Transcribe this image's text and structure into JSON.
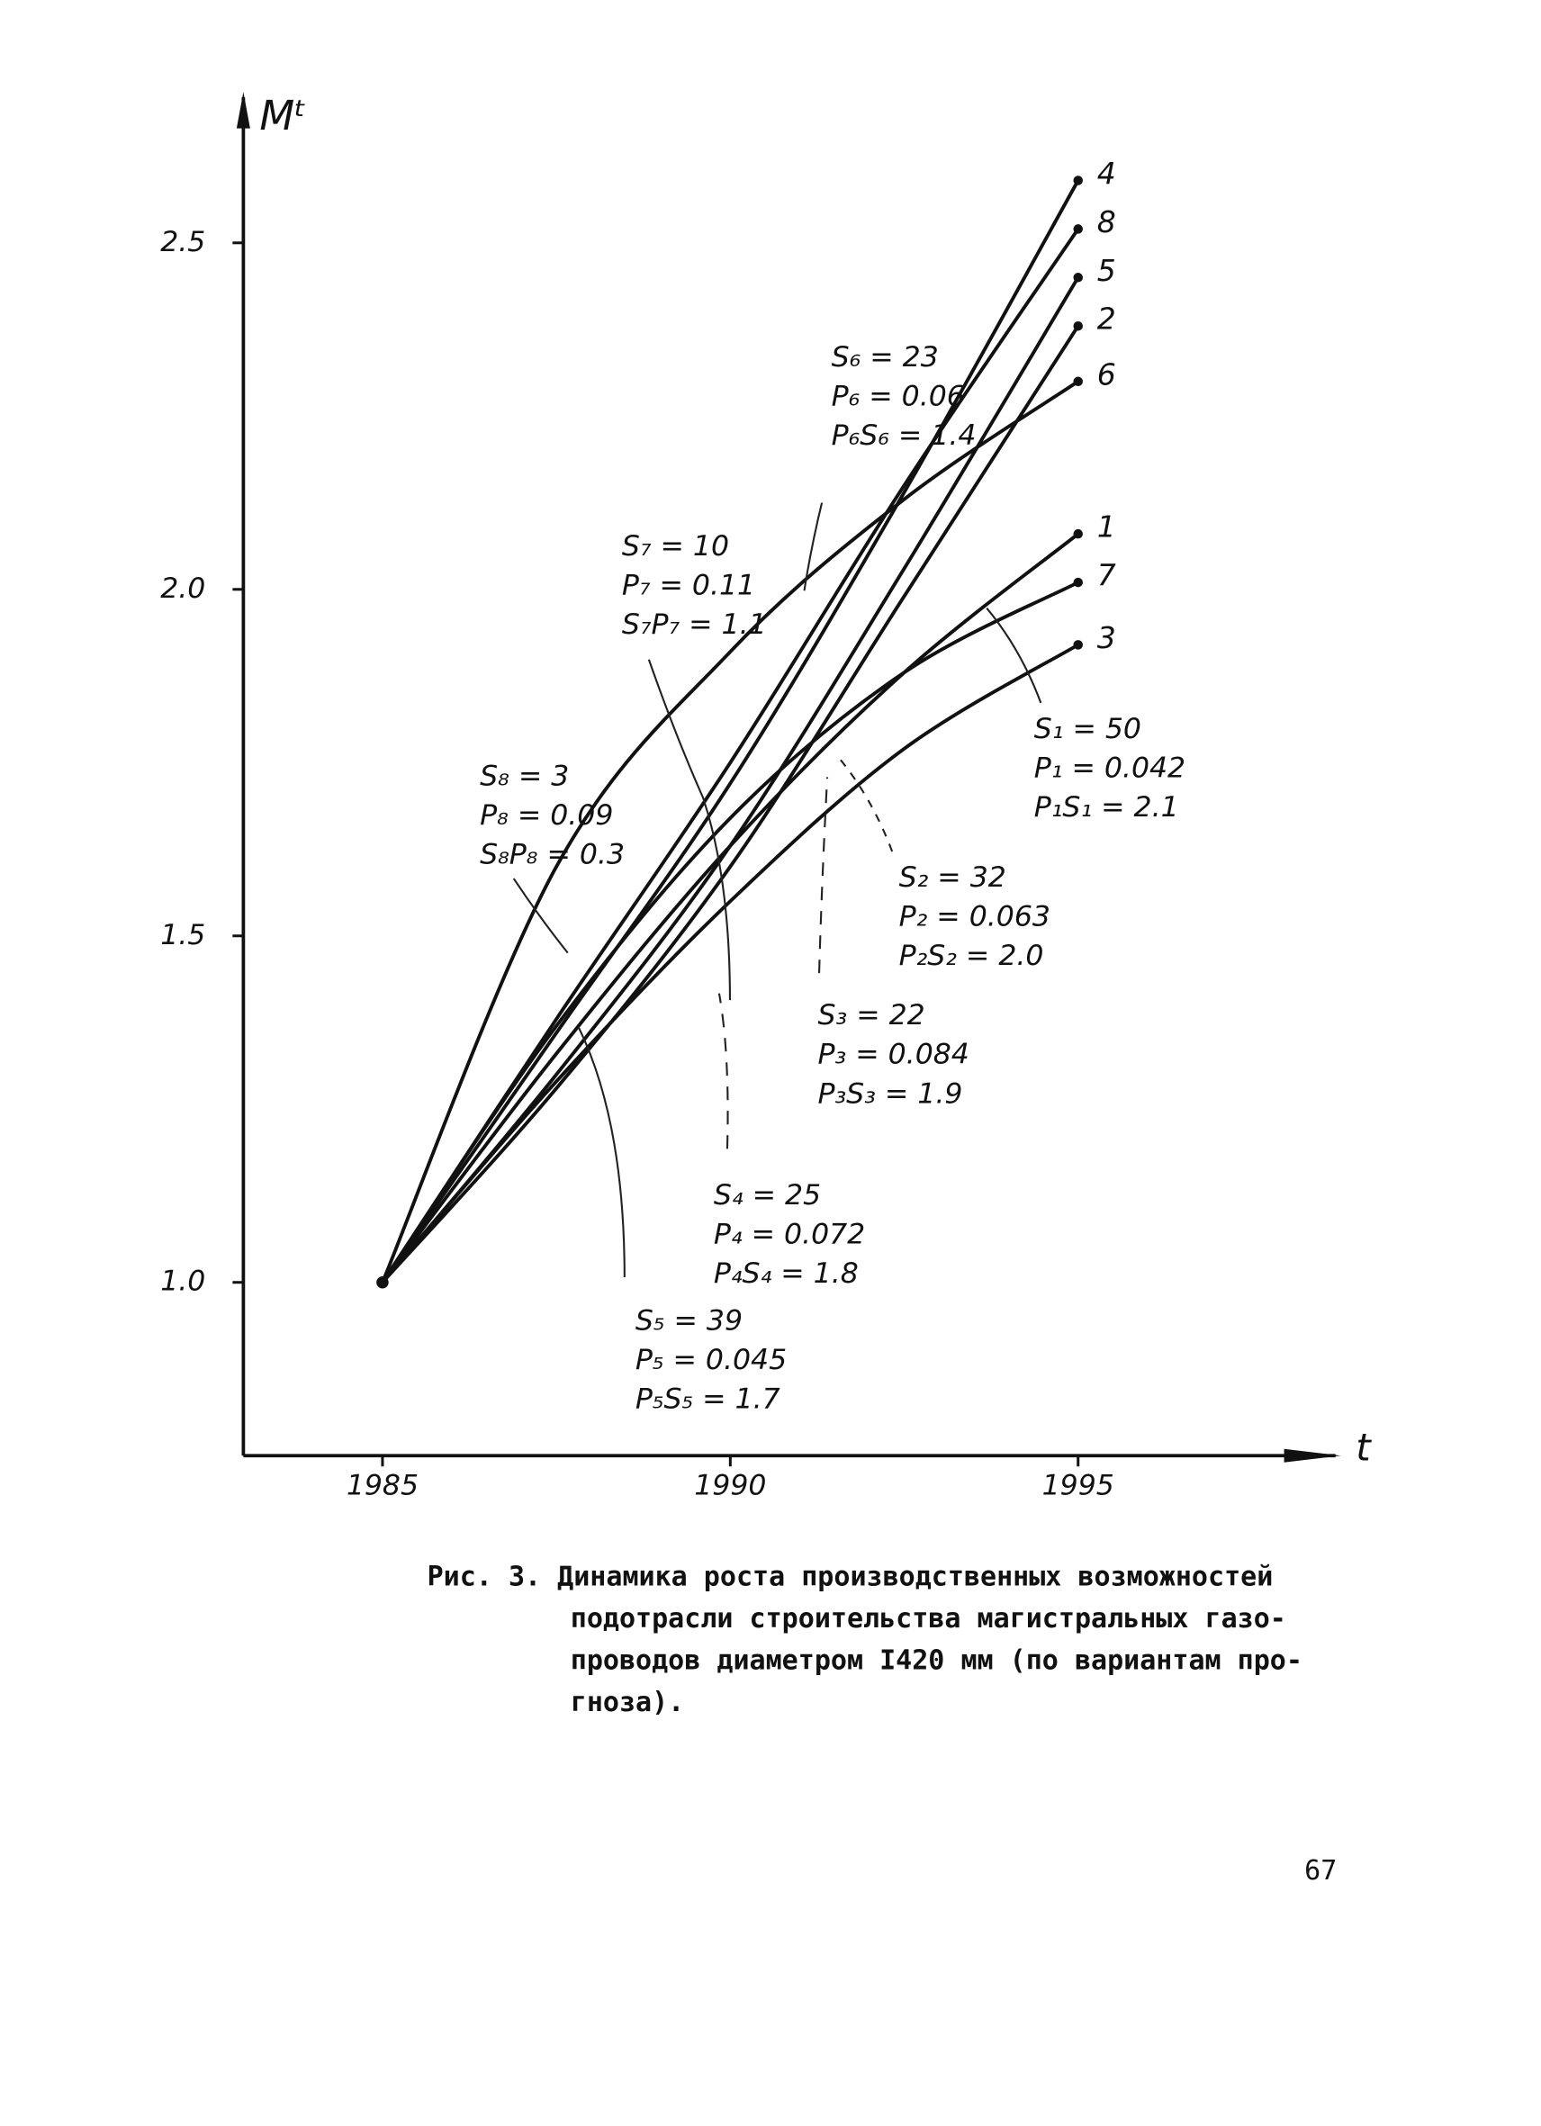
{
  "chart_data": {
    "type": "line",
    "y_label": "Mᵗ",
    "x_label": "t",
    "x": [
      1985,
      1987.5,
      1990,
      1992.5,
      1995
    ],
    "series": [
      {
        "name": "1",
        "color": "#111111",
        "values": [
          1.0,
          1.33,
          1.63,
          1.88,
          2.08
        ]
      },
      {
        "name": "2",
        "color": "#111111",
        "values": [
          1.0,
          1.28,
          1.6,
          1.99,
          2.38
        ]
      },
      {
        "name": "3",
        "color": "#111111",
        "values": [
          1.0,
          1.29,
          1.55,
          1.77,
          1.92
        ]
      },
      {
        "name": "4",
        "color": "#111111",
        "values": [
          1.0,
          1.36,
          1.72,
          2.14,
          2.59
        ]
      },
      {
        "name": "5",
        "color": "#111111",
        "values": [
          1.0,
          1.3,
          1.63,
          2.03,
          2.45
        ]
      },
      {
        "name": "6",
        "color": "#111111",
        "values": [
          1.0,
          1.6,
          1.91,
          2.13,
          2.3
        ]
      },
      {
        "name": "7",
        "color": "#111111",
        "values": [
          1.0,
          1.37,
          1.67,
          1.88,
          2.01
        ]
      },
      {
        "name": "8",
        "color": "#111111",
        "values": [
          1.0,
          1.38,
          1.75,
          2.15,
          2.52
        ]
      }
    ],
    "xlim": [
      1983,
      1998.7
    ],
    "xticks": [
      1985,
      1990,
      1995
    ],
    "ylim": [
      0.75,
      2.71
    ],
    "yticks": [
      {
        "value": 1,
        "label": "1.0"
      },
      1.5,
      {
        "value": 2,
        "label": "2.0"
      },
      2.5
    ],
    "annotations": [
      [
        "S₁ = 50",
        "P₁ = 0.042",
        "P₁S₁ = 2.1"
      ],
      [
        "S₂ = 32",
        "P₂ = 0.063",
        "P₂S₂ = 2.0"
      ],
      [
        "S₃ = 22",
        "P₃ = 0.084",
        "P₃S₃ = 1.9"
      ],
      [
        "S₄ = 25",
        "P₄ = 0.072",
        "P₄S₄ = 1.8"
      ],
      [
        "S₅ = 39",
        "P₅ = 0.045",
        "P₅S₅ = 1.7"
      ],
      [
        "S₆ = 23",
        "P₆ = 0.06",
        "P₆S₆ = 1.4"
      ],
      [
        "S₇ = 10",
        "P₇ = 0.11",
        "S₇P₇ = 1.1"
      ],
      [
        "S₈ = 3",
        "P₈ = 0.09",
        "S₈P₈ = 0.3"
      ]
    ]
  },
  "caption": [
    "Рис. 3. Динамика роста производственных возможностей",
    "подотрасли строительства магистральных газо-",
    "проводов диаметром I420 мм (по вариантам про-",
    "гноза)."
  ],
  "page_number": "67"
}
